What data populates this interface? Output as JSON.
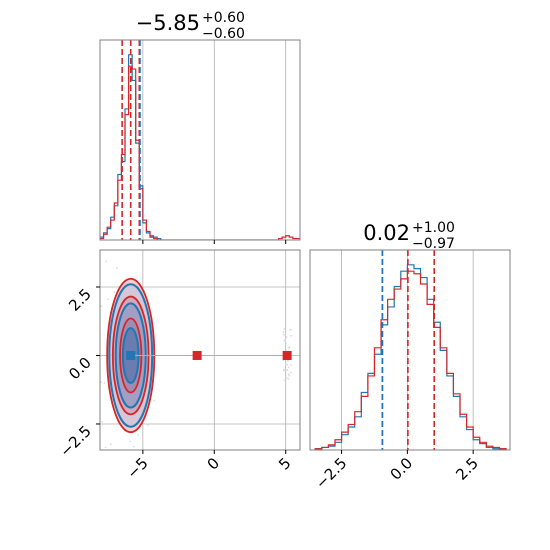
{
  "chart_data": {
    "type": "corner",
    "colors": {
      "blue": "#1f77b4",
      "red": "#d62728",
      "grid": "#b0b0b0",
      "spine": "#808080"
    },
    "titles": [
      {
        "main": "−5.85",
        "plus": "+0.60",
        "minus": "−0.60"
      },
      {
        "main": "0.02",
        "plus": "+1.00",
        "minus": "−0.97"
      }
    ],
    "x1_range": [
      -8,
      6
    ],
    "x2_range": [
      -3.7,
      3.9
    ],
    "x1_ticks": [
      {
        "value": -5,
        "label": "−5"
      },
      {
        "value": 0,
        "label": "0"
      },
      {
        "value": 5,
        "label": "5"
      }
    ],
    "x2_ticks": [
      {
        "value": -2.5,
        "label": "−2.5"
      },
      {
        "value": 0,
        "label": "0.0"
      },
      {
        "value": 2.5,
        "label": "2.5"
      }
    ],
    "y2_ticks": [
      {
        "value": 2.5,
        "label": "2.5"
      },
      {
        "value": 0,
        "label": "0.0"
      },
      {
        "value": -2.5,
        "label": "−2.5"
      }
    ],
    "marginal_1": {
      "dashed_lines": [
        {
          "value": -6.45,
          "color": "red"
        },
        {
          "value": -5.85,
          "color": "red"
        },
        {
          "value": -5.25,
          "color": "red"
        },
        {
          "value": -5.2,
          "color": "blue"
        }
      ],
      "series": [
        {
          "color": "blue",
          "bins": [
            -8.0,
            -7.75,
            -7.5,
            -7.25,
            -7.0,
            -6.75,
            -6.5,
            -6.25,
            -6.0,
            -5.75,
            -5.5,
            -5.25,
            -5.0,
            -4.75,
            -4.5,
            -4.25,
            -4.0,
            -3.75
          ],
          "counts": [
            2,
            5,
            8,
            16,
            24,
            46,
            55,
            92,
            130,
            112,
            68,
            38,
            12,
            5,
            3,
            2,
            1
          ]
        },
        {
          "color": "red",
          "bins": [
            -8.0,
            -7.75,
            -7.5,
            -7.25,
            -7.0,
            -6.75,
            -6.5,
            -6.25,
            -6.0,
            -5.75,
            -5.5,
            -5.25,
            -5.0,
            -4.75,
            -4.5,
            -4.25,
            -4.0,
            -3.75,
            4.5,
            4.75,
            5.0,
            5.25,
            5.5,
            5.75,
            6.0
          ],
          "counts": [
            1,
            4,
            9,
            14,
            26,
            42,
            60,
            88,
            122,
            120,
            70,
            36,
            14,
            6,
            2,
            1,
            0,
            0,
            1,
            2,
            3,
            2,
            1,
            1
          ]
        }
      ]
    },
    "marginal_2": {
      "dashed_lines": [
        {
          "value": -0.95,
          "color": "red"
        },
        {
          "value": -0.95,
          "color": "blue"
        },
        {
          "value": 0.02,
          "color": "red"
        },
        {
          "value": 1.02,
          "color": "red"
        }
      ],
      "series": [
        {
          "color": "blue",
          "bins": [
            -3.5,
            -3.25,
            -3.0,
            -2.75,
            -2.5,
            -2.25,
            -2.0,
            -1.75,
            -1.5,
            -1.25,
            -1.0,
            -0.75,
            -0.5,
            -0.25,
            0.0,
            0.25,
            0.5,
            0.75,
            1.0,
            1.25,
            1.5,
            1.75,
            2.0,
            2.25,
            2.5,
            2.75,
            3.0,
            3.25,
            3.5,
            3.75
          ],
          "counts": [
            1,
            2,
            3,
            6,
            12,
            18,
            26,
            45,
            60,
            75,
            98,
            112,
            128,
            140,
            145,
            142,
            135,
            118,
            100,
            78,
            58,
            42,
            26,
            16,
            8,
            5,
            2,
            1,
            1
          ]
        },
        {
          "color": "red",
          "bins": [
            -3.5,
            -3.25,
            -3.0,
            -2.75,
            -2.5,
            -2.25,
            -2.0,
            -1.75,
            -1.5,
            -1.25,
            -1.0,
            -0.75,
            -0.5,
            -0.25,
            0.0,
            0.25,
            0.5,
            0.75,
            1.0,
            1.25,
            1.5,
            1.75,
            2.0,
            2.25,
            2.5,
            2.75,
            3.0,
            3.25,
            3.5,
            3.75
          ],
          "counts": [
            1,
            2,
            4,
            8,
            14,
            20,
            30,
            42,
            58,
            80,
            102,
            118,
            126,
            134,
            140,
            138,
            130,
            114,
            96,
            80,
            60,
            44,
            28,
            18,
            10,
            6,
            3,
            2,
            1
          ]
        }
      ]
    },
    "joint": {
      "blue_contours": [
        {
          "cx": -5.85,
          "cy": 0.0,
          "rx": 0.55,
          "ry": 1.0
        },
        {
          "cx": -5.85,
          "cy": 0.0,
          "rx": 1.05,
          "ry": 1.9
        },
        {
          "cx": -5.85,
          "cy": 0.0,
          "rx": 1.5,
          "ry": 2.6
        }
      ],
      "red_contours": [
        {
          "cx": -5.85,
          "cy": 0.0,
          "rx": 0.75,
          "ry": 1.35
        },
        {
          "cx": -5.85,
          "cy": 0.0,
          "rx": 1.25,
          "ry": 2.15
        },
        {
          "cx": -5.85,
          "cy": 0.0,
          "rx": 1.65,
          "ry": 2.8
        }
      ],
      "markers": [
        {
          "x": -5.85,
          "y": 0.0,
          "color": "blue"
        },
        {
          "x": -1.2,
          "y": 0.0,
          "color": "red"
        },
        {
          "x": 5.1,
          "y": 0.0,
          "color": "red"
        }
      ],
      "outlier_cluster": {
        "x": 5.1,
        "y": 0.0,
        "sx": 0.3,
        "sy": 1.0,
        "n": 40
      }
    }
  }
}
